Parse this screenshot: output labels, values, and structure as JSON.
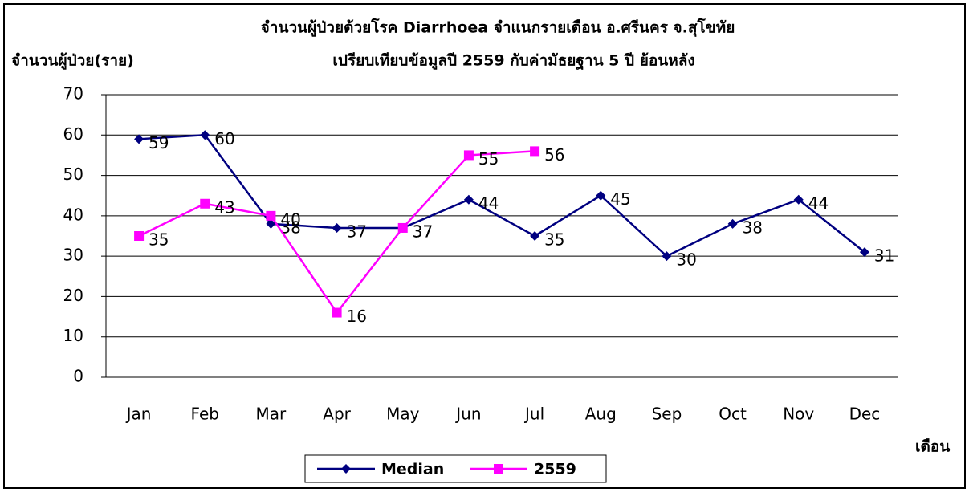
{
  "chart_data": {
    "type": "line",
    "title": "จำนวนผู้ป่วยด้วยโรค  Diarrhoea  จำแนกรายเดือน     อ.ศรีนคร จ.สุโขทัย",
    "subtitle": "เปรียบเทียบข้อมูลปี  2559  กับค่ามัธยฐาน 5 ปี ย้อนหลัง",
    "y_label": "จำนวนผู้ป่วย(ราย)",
    "x_label": "เดือน",
    "categories": [
      "Jan",
      "Feb",
      "Mar",
      "Apr",
      "May",
      "Jun",
      "Jul",
      "Aug",
      "Sep",
      "Oct",
      "Nov",
      "Dec"
    ],
    "series": [
      {
        "name": "Median",
        "color": "#000080",
        "marker": "diamond",
        "values": [
          59,
          60,
          38,
          37,
          37,
          44,
          35,
          45,
          30,
          38,
          44,
          31
        ]
      },
      {
        "name": "2559",
        "color": "#ff00ff",
        "marker": "square",
        "values": [
          35,
          43,
          40,
          16,
          37,
          55,
          56,
          null,
          null,
          null,
          null,
          null
        ]
      }
    ],
    "ylim": [
      0,
      70
    ],
    "yticks": [
      0,
      10,
      20,
      30,
      40,
      50,
      60,
      70
    ],
    "grid": true,
    "legend": "bottom"
  }
}
